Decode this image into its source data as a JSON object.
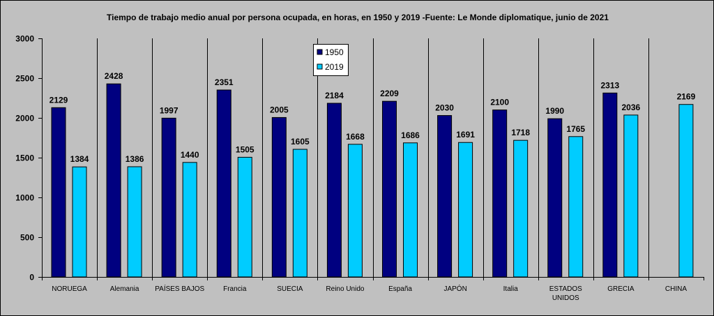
{
  "colors": {
    "series_1950": "#000080",
    "series_2019": "#00ccff",
    "background": "#c0c0c0",
    "legend_bg": "#ffffff"
  },
  "chart_data": {
    "type": "bar",
    "title": "Tiempo de trabajo medio anual por persona ocupada, en horas, en 1950 y 2019 -Fuente: Le Monde diplomatique, junio de 2021",
    "xlabel": "",
    "ylabel": "",
    "ylim": [
      0,
      3000
    ],
    "yticks": [
      0,
      500,
      1000,
      1500,
      2000,
      2500,
      3000
    ],
    "grid": false,
    "legend_position": "top-center",
    "categories": [
      "NORUEGA",
      "Alemania",
      "PAÍSES BAJOS",
      "Francia",
      "SUECIA",
      "Reino Unido",
      "España",
      "JAPÓN",
      "Italia",
      "ESTADOS UNIDOS",
      "GRECIA",
      "CHINA"
    ],
    "category_lines": [
      [
        "NORUEGA"
      ],
      [
        "Alemania"
      ],
      [
        "PAÍSES BAJOS"
      ],
      [
        "Francia"
      ],
      [
        "SUECIA"
      ],
      [
        "Reino Unido"
      ],
      [
        "España"
      ],
      [
        "JAPÓN"
      ],
      [
        "Italia"
      ],
      [
        "ESTADOS",
        "UNIDOS"
      ],
      [
        "GRECIA"
      ],
      [
        "CHINA"
      ]
    ],
    "series": [
      {
        "name": "1950",
        "values": [
          2129,
          2428,
          1997,
          2351,
          2005,
          2184,
          2209,
          2030,
          2100,
          1990,
          2313,
          null
        ]
      },
      {
        "name": "2019",
        "values": [
          1384,
          1386,
          1440,
          1505,
          1605,
          1668,
          1686,
          1691,
          1718,
          1765,
          2036,
          2169
        ]
      }
    ]
  }
}
